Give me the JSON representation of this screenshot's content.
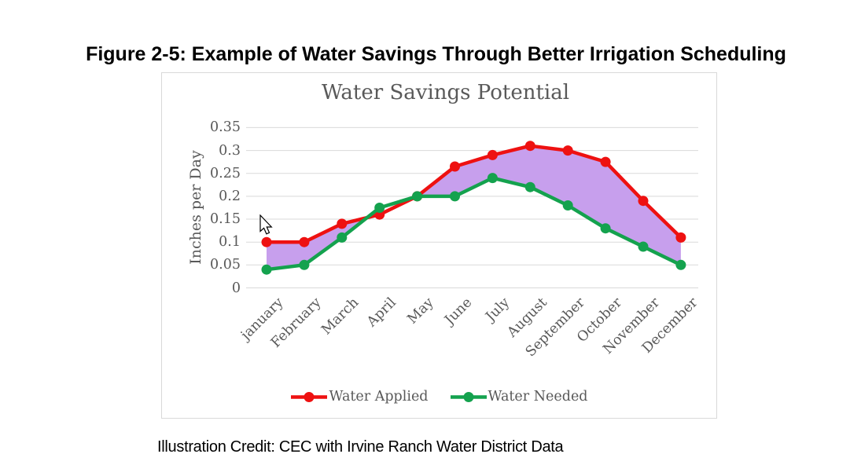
{
  "figure_title": "Figure 2-5: Example of Water Savings Through Better Irrigation Scheduling",
  "credit_line": "Illustration Credit: CEC with Irvine Ranch Water District Data",
  "cursor": {
    "type": "arrow-pointer"
  },
  "chart_data": {
    "type": "line",
    "title": "Water Savings Potential",
    "xlabel": "",
    "ylabel": "Inches per Day",
    "categories": [
      "january",
      "February",
      "March",
      "April",
      "May",
      "June",
      "July",
      "August",
      "September",
      "October",
      "November",
      "December"
    ],
    "series": [
      {
        "name": "Water Applied",
        "color": "#EE1111",
        "marker": "circle",
        "values": [
          0.1,
          0.1,
          0.14,
          0.16,
          0.2,
          0.265,
          0.29,
          0.31,
          0.3,
          0.275,
          0.19,
          0.11
        ]
      },
      {
        "name": "Water Needed",
        "color": "#14A24E",
        "marker": "circle",
        "values": [
          0.04,
          0.05,
          0.11,
          0.175,
          0.2,
          0.2,
          0.24,
          0.22,
          0.18,
          0.13,
          0.09,
          0.05
        ]
      }
    ],
    "savings_area": {
      "description": "purple shaded region between Water Applied and Water Needed where applied exceeds needed",
      "color": "#C79FED"
    },
    "ylim": [
      0,
      0.35
    ],
    "ytick_step": 0.05,
    "yticks": [
      "0",
      "0.05",
      "0.1",
      "0.15",
      "0.2",
      "0.25",
      "0.3",
      "0.35"
    ],
    "grid": true,
    "legend_position": "bottom",
    "colors": {
      "grid": "#D9D9D9",
      "panel_border": "#D9D9D9",
      "text": "#595959"
    }
  }
}
